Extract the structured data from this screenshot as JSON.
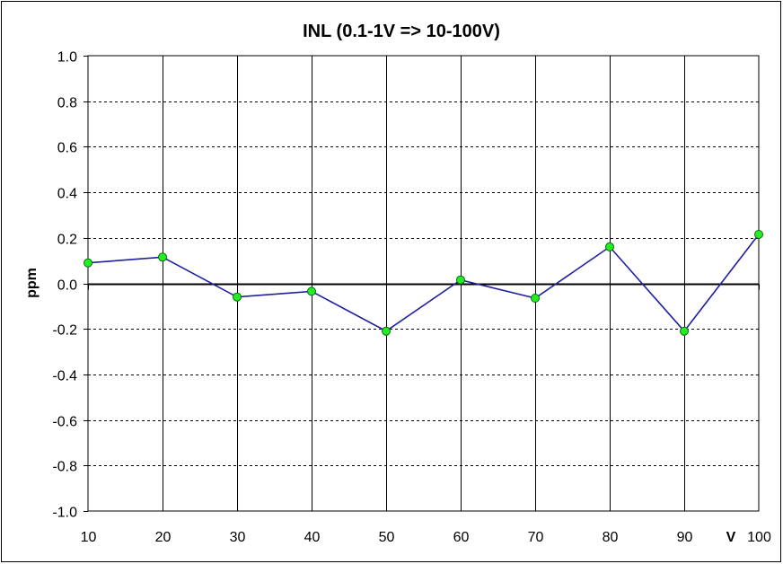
{
  "chart_data": {
    "type": "line",
    "title": "INL (0.1-1V => 10-100V)",
    "xlabel": "V",
    "ylabel": "ppm",
    "x": [
      10,
      20,
      30,
      40,
      50,
      60,
      70,
      80,
      90,
      100
    ],
    "x_tick_labels": [
      "10",
      "20",
      "30",
      "40",
      "50",
      "60",
      "70",
      "80",
      "90",
      "100"
    ],
    "xlim": [
      10,
      100
    ],
    "ylim": [
      -1.0,
      1.0
    ],
    "y_tick_values": [
      1.0,
      0.8,
      0.6,
      0.4,
      0.2,
      0.0,
      -0.2,
      -0.4,
      -0.6,
      -0.8,
      -1.0
    ],
    "y_tick_labels": [
      "1.0",
      "0.8",
      "0.6",
      "0.4",
      "0.2",
      "0.0",
      "-0.2",
      "-0.4",
      "-0.6",
      "-0.8",
      "-1.0"
    ],
    "series": [
      {
        "values": [
          0.09,
          0.115,
          -0.06,
          -0.035,
          -0.21,
          0.015,
          -0.065,
          0.16,
          -0.21,
          0.215
        ]
      }
    ],
    "grid": "vertical solid lines at each x tick; horizontal dashed lines at each y tick",
    "colors": {
      "line": "#1f1fa0",
      "marker_fill": "#22ee22",
      "marker_stroke": "#0a6a0a",
      "zero_line": "#000000",
      "grid": "#000000",
      "background": "#ffffff"
    }
  }
}
